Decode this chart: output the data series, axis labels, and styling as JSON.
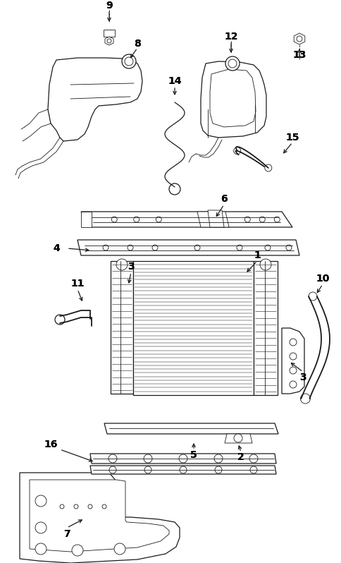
{
  "bg_color": "#ffffff",
  "line_color": "#1a1a1a",
  "figsize": [
    4.85,
    7.98
  ],
  "dpi": 100
}
